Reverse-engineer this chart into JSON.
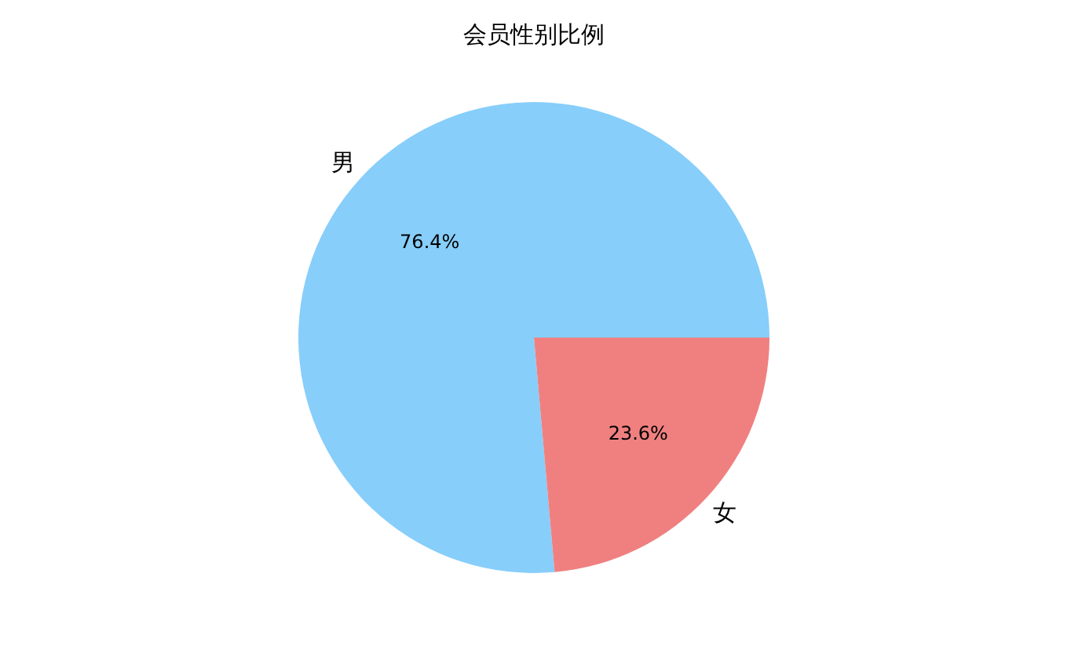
{
  "chart_data": {
    "type": "pie",
    "title": "会员性别比例",
    "categories": [
      "男",
      "女"
    ],
    "values": [
      76.4,
      23.6
    ],
    "colors": [
      "#87cefa",
      "#f08080"
    ],
    "value_labels": [
      "76.4%",
      "23.6%"
    ]
  }
}
